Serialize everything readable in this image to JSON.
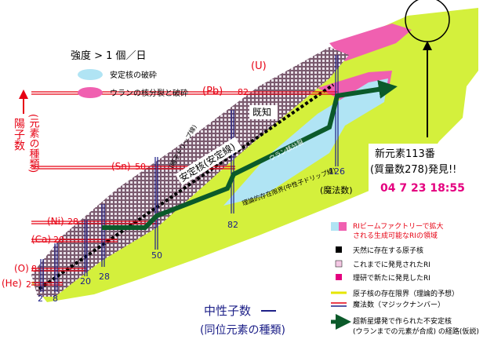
{
  "intensity_legend": {
    "title": "強度 > 1 個／日",
    "items": [
      "安定核の破砕",
      "ウランの核分裂と破砕"
    ]
  },
  "y_axis": {
    "label": "陽子数",
    "sublabel": "(元素の種類)"
  },
  "x_axis": {
    "label": "中性子数",
    "sublabel": "(同位元素の種類)"
  },
  "proton_elements": [
    "(U)",
    "(Pb)",
    "(Sn)",
    "(Ni)",
    "(Ca)",
    "(O)",
    "(He)"
  ],
  "proton_magic": [
    "82",
    "50",
    "28",
    "20",
    "8",
    "2"
  ],
  "neutron_magic": [
    "2",
    "8",
    "20",
    "28",
    "50",
    "82",
    "126"
  ],
  "neutron_magic_note": "(魔法数)",
  "regions": {
    "known": "既知",
    "stable": "安定核(安定線)",
    "proton_drip": "(陽子ドリップ線)",
    "fission": "ウラン核分裂",
    "neutron_drip": "理論的存在限界(中性子ドリップ線)"
  },
  "discovery": {
    "line1": "新元素113番",
    "line2": "(質量数278)発見!!",
    "timestamp": "04 7 23 18:55"
  },
  "legend": [
    "RIビームファクトリーで拡大",
    "される生成可能なRIの領域",
    "天然に存在する原子核",
    "これまでに発見されたRI",
    "理研で新たに発見したRI",
    "原子核の存在限界（理論的予想）",
    "魔法数（マジックナンバー）",
    "超新星爆発で作られた不安定核",
    "(ウランまでの元素が合成) の経路(仮説)"
  ]
}
